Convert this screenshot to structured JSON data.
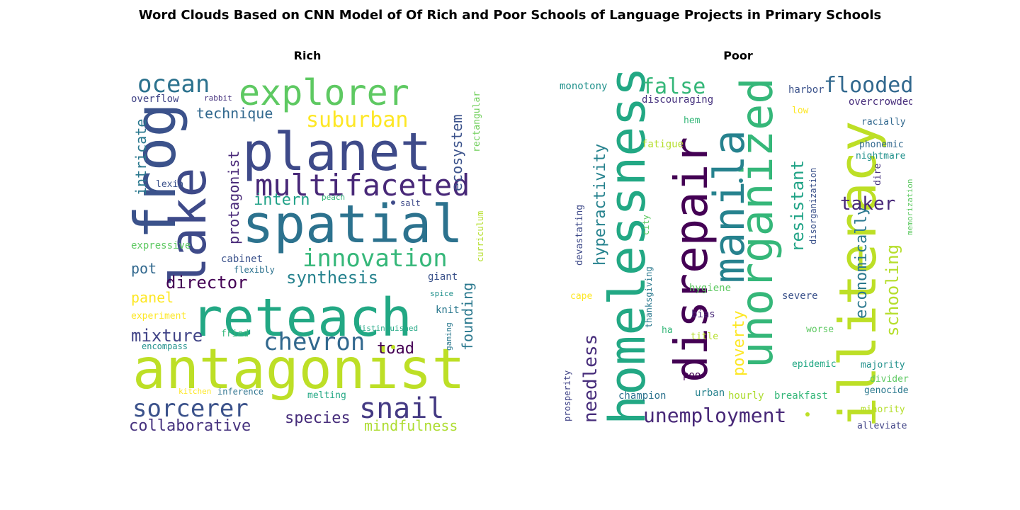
{
  "title": "Word Clouds Based on CNN Model of Of Rich and Poor Schools of Language Projects in Primary Schools",
  "chart_data": [
    {
      "type": "wordcloud",
      "title": "Rich",
      "words": [
        {
          "text": "antagonist",
          "weight": 1.0,
          "color": "#bddf26",
          "orientation": "horizontal"
        },
        {
          "text": "reteach",
          "weight": 0.95,
          "color": "#22a884",
          "orientation": "horizontal"
        },
        {
          "text": "planet",
          "weight": 0.9,
          "color": "#3e4a89",
          "orientation": "horizontal"
        },
        {
          "text": "spatial",
          "weight": 0.88,
          "color": "#2c728e",
          "orientation": "horizontal"
        },
        {
          "text": "frog",
          "weight": 0.85,
          "color": "#3b528b",
          "orientation": "vertical"
        },
        {
          "text": "lake",
          "weight": 0.82,
          "color": "#3e4a89",
          "orientation": "vertical"
        },
        {
          "text": "explorer",
          "weight": 0.62,
          "color": "#5ec962",
          "orientation": "horizontal"
        },
        {
          "text": "multifaceted",
          "weight": 0.6,
          "color": "#482878",
          "orientation": "horizontal"
        },
        {
          "text": "innovation",
          "weight": 0.5,
          "color": "#35b779",
          "orientation": "horizontal"
        },
        {
          "text": "chevron",
          "weight": 0.48,
          "color": "#31688e",
          "orientation": "horizontal"
        },
        {
          "text": "snail",
          "weight": 0.48,
          "color": "#443a83",
          "orientation": "horizontal"
        },
        {
          "text": "sorcerer",
          "weight": 0.45,
          "color": "#3b528b",
          "orientation": "horizontal"
        },
        {
          "text": "ocean",
          "weight": 0.45,
          "color": "#2c728e",
          "orientation": "horizontal"
        },
        {
          "text": "suburban",
          "weight": 0.42,
          "color": "#fde725",
          "orientation": "horizontal"
        },
        {
          "text": "synthesis",
          "weight": 0.35,
          "color": "#26828e",
          "orientation": "horizontal"
        },
        {
          "text": "director",
          "weight": 0.34,
          "color": "#440154",
          "orientation": "horizontal"
        },
        {
          "text": "mixture",
          "weight": 0.34,
          "color": "#414487",
          "orientation": "horizontal"
        },
        {
          "text": "toad",
          "weight": 0.32,
          "color": "#440154",
          "orientation": "horizontal"
        },
        {
          "text": "collaborative",
          "weight": 0.32,
          "color": "#46327e",
          "orientation": "horizontal"
        },
        {
          "text": "species",
          "weight": 0.3,
          "color": "#472d7b",
          "orientation": "horizontal"
        },
        {
          "text": "mindfulness",
          "weight": 0.3,
          "color": "#addc30",
          "orientation": "horizontal"
        },
        {
          "text": "technique",
          "weight": 0.28,
          "color": "#31688e",
          "orientation": "horizontal"
        },
        {
          "text": "ecosystem",
          "weight": 0.3,
          "color": "#3b528b",
          "orientation": "vertical"
        },
        {
          "text": "protagonist",
          "weight": 0.3,
          "color": "#482878",
          "orientation": "vertical"
        },
        {
          "text": "intricate",
          "weight": 0.28,
          "color": "#2a788e",
          "orientation": "vertical"
        },
        {
          "text": "founding",
          "weight": 0.26,
          "color": "#2a788e",
          "orientation": "vertical"
        },
        {
          "text": "intern",
          "weight": 0.3,
          "color": "#1fa187",
          "orientation": "horizontal"
        },
        {
          "text": "panel",
          "weight": 0.28,
          "color": "#fde725",
          "orientation": "horizontal"
        },
        {
          "text": "pot",
          "weight": 0.28,
          "color": "#31688e",
          "orientation": "horizontal"
        },
        {
          "text": "rectangular",
          "weight": 0.18,
          "color": "#6ece58",
          "orientation": "vertical"
        },
        {
          "text": "curriculum",
          "weight": 0.16,
          "color": "#b5de2b",
          "orientation": "vertical"
        },
        {
          "text": "overflow",
          "weight": 0.18,
          "color": "#414487",
          "orientation": "horizontal"
        },
        {
          "text": "expressive",
          "weight": 0.18,
          "color": "#5ec962",
          "orientation": "horizontal"
        },
        {
          "text": "cabinet",
          "weight": 0.16,
          "color": "#3b528b",
          "orientation": "horizontal"
        },
        {
          "text": "flexibly",
          "weight": 0.14,
          "color": "#2c728e",
          "orientation": "horizontal"
        },
        {
          "text": "experiment",
          "weight": 0.16,
          "color": "#fde725",
          "orientation": "horizontal"
        },
        {
          "text": "giant",
          "weight": 0.16,
          "color": "#3b528b",
          "orientation": "horizontal"
        },
        {
          "text": "knit",
          "weight": 0.16,
          "color": "#2a788e",
          "orientation": "horizontal"
        },
        {
          "text": "fried",
          "weight": 0.14,
          "color": "#35b779",
          "orientation": "horizontal"
        },
        {
          "text": "encompass",
          "weight": 0.14,
          "color": "#21918c",
          "orientation": "horizontal"
        },
        {
          "text": "distinguished",
          "weight": 0.12,
          "color": "#22a884",
          "orientation": "horizontal"
        },
        {
          "text": "gaming",
          "weight": 0.12,
          "color": "#2a788e",
          "orientation": "vertical"
        },
        {
          "text": "spice",
          "weight": 0.12,
          "color": "#21918c",
          "orientation": "horizontal"
        },
        {
          "text": "kitchen",
          "weight": 0.12,
          "color": "#fde725",
          "orientation": "horizontal"
        },
        {
          "text": "inference",
          "weight": 0.14,
          "color": "#2c728e",
          "orientation": "horizontal"
        },
        {
          "text": "melting",
          "weight": 0.14,
          "color": "#22a884",
          "orientation": "horizontal"
        },
        {
          "text": "lexia",
          "weight": 0.13,
          "color": "#3b528b",
          "orientation": "horizontal"
        },
        {
          "text": "peach",
          "weight": 0.12,
          "color": "#35b779",
          "orientation": "horizontal"
        },
        {
          "text": "salt",
          "weight": 0.12,
          "color": "#3e4a89",
          "orientation": "horizontal"
        },
        {
          "text": "rabbit",
          "weight": 0.11,
          "color": "#46327e",
          "orientation": "horizontal"
        }
      ]
    },
    {
      "type": "wordcloud",
      "title": "Poor",
      "words": [
        {
          "text": "homelessness",
          "weight": 1.0,
          "color": "#22a884",
          "orientation": "vertical"
        },
        {
          "text": "illiteracy",
          "weight": 0.98,
          "color": "#bddf26",
          "orientation": "vertical"
        },
        {
          "text": "disrepair",
          "weight": 0.9,
          "color": "#440154",
          "orientation": "vertical"
        },
        {
          "text": "unorganized",
          "weight": 0.85,
          "color": "#35b779",
          "orientation": "vertical"
        },
        {
          "text": "manila",
          "weight": 0.8,
          "color": "#26828e",
          "orientation": "vertical"
        },
        {
          "text": "unemployment",
          "weight": 0.4,
          "color": "#482878",
          "orientation": "horizontal"
        },
        {
          "text": "hyperactivity",
          "weight": 0.38,
          "color": "#26828e",
          "orientation": "vertical"
        },
        {
          "text": "needless",
          "weight": 0.38,
          "color": "#472d7b",
          "orientation": "vertical"
        },
        {
          "text": "flooded",
          "weight": 0.38,
          "color": "#31688e",
          "orientation": "horizontal"
        },
        {
          "text": "false",
          "weight": 0.36,
          "color": "#35b779",
          "orientation": "horizontal"
        },
        {
          "text": "resistant",
          "weight": 0.34,
          "color": "#20a386",
          "orientation": "vertical"
        },
        {
          "text": "economically",
          "weight": 0.34,
          "color": "#2a788e",
          "orientation": "vertical"
        },
        {
          "text": "schooling",
          "weight": 0.34,
          "color": "#b5de2b",
          "orientation": "vertical"
        },
        {
          "text": "taker",
          "weight": 0.34,
          "color": "#482878",
          "orientation": "horizontal"
        },
        {
          "text": "poverty",
          "weight": 0.3,
          "color": "#fde725",
          "orientation": "vertical"
        },
        {
          "text": "monotony",
          "weight": 0.16,
          "color": "#21918c",
          "orientation": "horizontal"
        },
        {
          "text": "discouraging",
          "weight": 0.17,
          "color": "#46327e",
          "orientation": "horizontal"
        },
        {
          "text": "harbor",
          "weight": 0.16,
          "color": "#3b528b",
          "orientation": "horizontal"
        },
        {
          "text": "overcrowded",
          "weight": 0.16,
          "color": "#472d7b",
          "orientation": "horizontal"
        },
        {
          "text": "low",
          "weight": 0.14,
          "color": "#fde725",
          "orientation": "horizontal"
        },
        {
          "text": "hem",
          "weight": 0.14,
          "color": "#35b779",
          "orientation": "horizontal"
        },
        {
          "text": "racially",
          "weight": 0.16,
          "color": "#31688e",
          "orientation": "horizontal"
        },
        {
          "text": "fatigue",
          "weight": 0.15,
          "color": "#b5de2b",
          "orientation": "horizontal"
        },
        {
          "text": "phonemic",
          "weight": 0.15,
          "color": "#31688e",
          "orientation": "horizontal"
        },
        {
          "text": "nightmare",
          "weight": 0.15,
          "color": "#21918c",
          "orientation": "horizontal"
        },
        {
          "text": "dire",
          "weight": 0.14,
          "color": "#46327e",
          "orientation": "vertical"
        },
        {
          "text": "disorganization",
          "weight": 0.14,
          "color": "#3b528b",
          "orientation": "vertical"
        },
        {
          "text": "memorization",
          "weight": 0.12,
          "color": "#5ec962",
          "orientation": "vertical"
        },
        {
          "text": "city",
          "weight": 0.13,
          "color": "#5ec962",
          "orientation": "vertical"
        },
        {
          "text": "devastating",
          "weight": 0.14,
          "color": "#3e4a89",
          "orientation": "vertical"
        },
        {
          "text": "thanksgiving",
          "weight": 0.13,
          "color": "#2a788e",
          "orientation": "vertical"
        },
        {
          "text": "hygiene",
          "weight": 0.15,
          "color": "#5ec962",
          "orientation": "horizontal"
        },
        {
          "text": "cape",
          "weight": 0.15,
          "color": "#fde725",
          "orientation": "horizontal"
        },
        {
          "text": "severe",
          "weight": 0.15,
          "color": "#3b528b",
          "orientation": "horizontal"
        },
        {
          "text": "bias",
          "weight": 0.16,
          "color": "#482878",
          "orientation": "horizontal"
        },
        {
          "text": "ha",
          "weight": 0.15,
          "color": "#35b779",
          "orientation": "horizontal"
        },
        {
          "text": "title",
          "weight": 0.15,
          "color": "#b5de2b",
          "orientation": "horizontal"
        },
        {
          "text": "worse",
          "weight": 0.15,
          "color": "#5ec962",
          "orientation": "horizontal"
        },
        {
          "text": "epidemic",
          "weight": 0.15,
          "color": "#22a884",
          "orientation": "horizontal"
        },
        {
          "text": "majority",
          "weight": 0.15,
          "color": "#21918c",
          "orientation": "horizontal"
        },
        {
          "text": "divider",
          "weight": 0.15,
          "color": "#5ec962",
          "orientation": "horizontal"
        },
        {
          "text": "prosperity",
          "weight": 0.14,
          "color": "#414487",
          "orientation": "vertical"
        },
        {
          "text": "poor",
          "weight": 0.15,
          "color": "#440154",
          "orientation": "horizontal"
        },
        {
          "text": "champion",
          "weight": 0.15,
          "color": "#2c728e",
          "orientation": "horizontal"
        },
        {
          "text": "urban",
          "weight": 0.15,
          "color": "#26828e",
          "orientation": "horizontal"
        },
        {
          "text": "hourly",
          "weight": 0.15,
          "color": "#addc30",
          "orientation": "horizontal"
        },
        {
          "text": "breakfast",
          "weight": 0.15,
          "color": "#35b779",
          "orientation": "horizontal"
        },
        {
          "text": "genocide",
          "weight": 0.15,
          "color": "#2a788e",
          "orientation": "horizontal"
        },
        {
          "text": "minority",
          "weight": 0.15,
          "color": "#b5de2b",
          "orientation": "horizontal"
        },
        {
          "text": "alleviate",
          "weight": 0.15,
          "color": "#414487",
          "orientation": "horizontal"
        }
      ]
    }
  ]
}
